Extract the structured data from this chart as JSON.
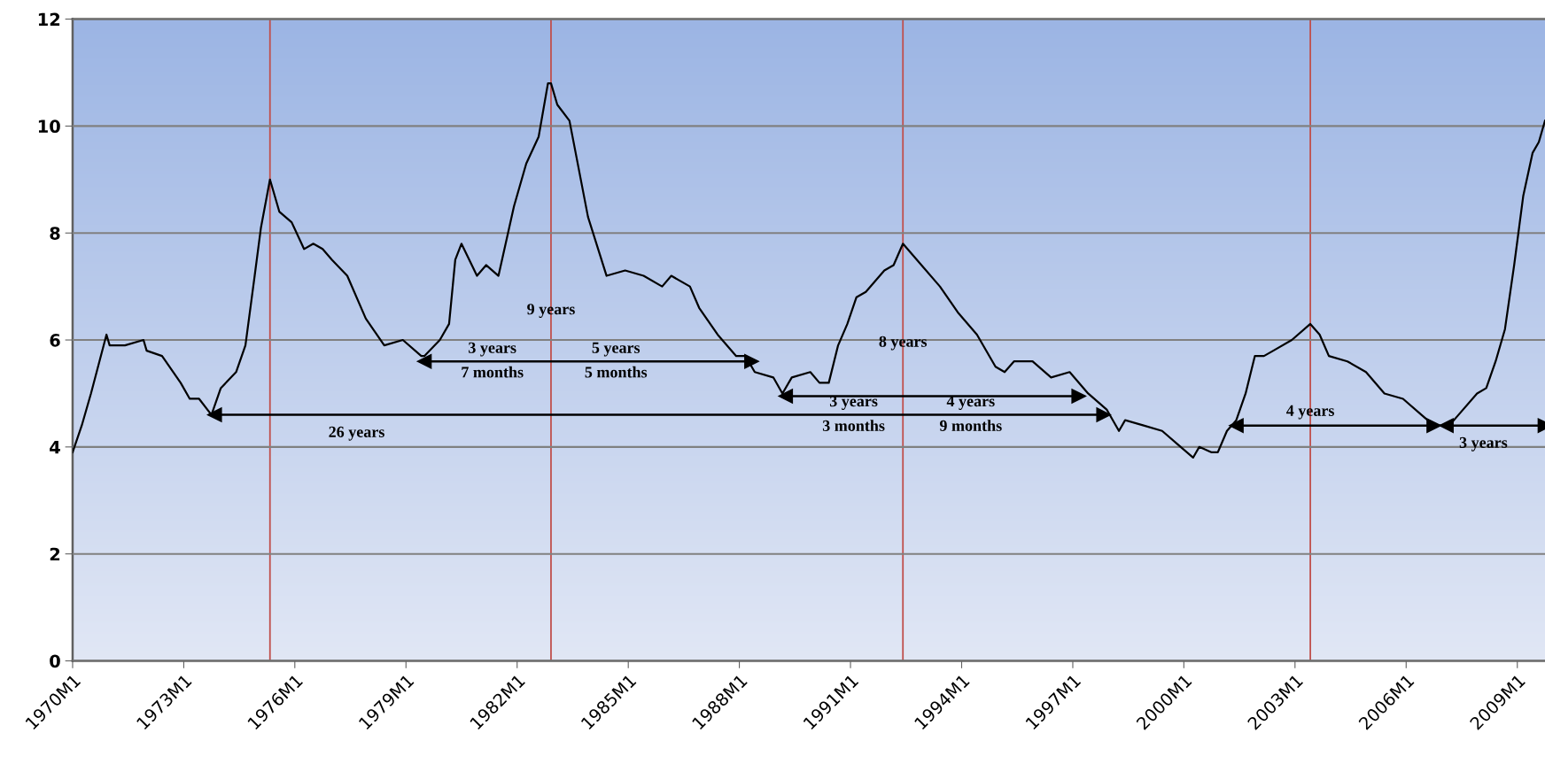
{
  "chart_data": {
    "type": "line",
    "x": [
      "1970-01",
      "1970-04",
      "1970-07",
      "1970-12",
      "1971-01",
      "1971-06",
      "1971-12",
      "1972-01",
      "1972-06",
      "1972-12",
      "1973-03",
      "1973-06",
      "1973-10",
      "1974-01",
      "1974-06",
      "1974-09",
      "1974-12",
      "1975-02",
      "1975-05",
      "1975-08",
      "1975-12",
      "1976-04",
      "1976-07",
      "1976-10",
      "1977-01",
      "1977-06",
      "1977-12",
      "1978-06",
      "1978-12",
      "1979-06",
      "1979-07",
      "1979-12",
      "1980-03",
      "1980-05",
      "1980-07",
      "1980-12",
      "1981-03",
      "1981-07",
      "1981-12",
      "1982-04",
      "1982-08",
      "1982-11",
      "1982-12",
      "1983-02",
      "1983-06",
      "1983-08",
      "1983-12",
      "1984-06",
      "1984-12",
      "1985-06",
      "1985-12",
      "1986-03",
      "1986-09",
      "1986-12",
      "1987-06",
      "1987-12",
      "1988-03",
      "1988-06",
      "1988-12",
      "1989-03",
      "1989-06",
      "1989-12",
      "1990-03",
      "1990-06",
      "1990-09",
      "1990-12",
      "1991-03",
      "1991-06",
      "1991-12",
      "1992-03",
      "1992-06",
      "1992-12",
      "1993-06",
      "1993-12",
      "1994-06",
      "1994-12",
      "1995-03",
      "1995-06",
      "1995-12",
      "1996-06",
      "1996-12",
      "1997-06",
      "1997-12",
      "1998-04",
      "1998-06",
      "1998-12",
      "1999-06",
      "1999-12",
      "2000-04",
      "2000-06",
      "2000-10",
      "2000-12",
      "2001-03",
      "2001-06",
      "2001-09",
      "2001-12",
      "2002-03",
      "2002-06",
      "2002-12",
      "2003-06",
      "2003-09",
      "2003-12",
      "2004-06",
      "2004-12",
      "2005-06",
      "2005-12",
      "2006-06",
      "2006-10",
      "2007-03",
      "2007-06",
      "2007-12",
      "2008-03",
      "2008-06",
      "2008-09",
      "2008-12",
      "2009-03",
      "2009-06",
      "2009-08",
      "2009-10"
    ],
    "series": [
      {
        "color": "#000000",
        "values": [
          3.9,
          4.4,
          5.0,
          6.1,
          5.9,
          5.9,
          6.0,
          5.8,
          5.7,
          5.2,
          4.9,
          4.9,
          4.6,
          5.1,
          5.4,
          5.9,
          7.2,
          8.1,
          9.0,
          8.4,
          8.2,
          7.7,
          7.8,
          7.7,
          7.5,
          7.2,
          6.4,
          5.9,
          6.0,
          5.7,
          5.7,
          6.0,
          6.3,
          7.5,
          7.8,
          7.2,
          7.4,
          7.2,
          8.5,
          9.3,
          9.8,
          10.8,
          10.8,
          10.4,
          10.1,
          9.5,
          8.3,
          7.2,
          7.3,
          7.2,
          7.0,
          7.2,
          7.0,
          6.6,
          6.1,
          5.7,
          5.7,
          5.4,
          5.3,
          5.0,
          5.3,
          5.4,
          5.2,
          5.2,
          5.9,
          6.3,
          6.8,
          6.9,
          7.3,
          7.4,
          7.8,
          7.4,
          7.0,
          6.5,
          6.1,
          5.5,
          5.4,
          5.6,
          5.6,
          5.3,
          5.4,
          5.0,
          4.7,
          4.3,
          4.5,
          4.4,
          4.3,
          4.0,
          3.8,
          4.0,
          3.9,
          3.9,
          4.3,
          4.5,
          5.0,
          5.7,
          5.7,
          5.8,
          6.0,
          6.3,
          6.1,
          5.7,
          5.6,
          5.4,
          5.0,
          4.9,
          4.6,
          4.4,
          4.4,
          4.6,
          5.0,
          5.1,
          5.6,
          6.2,
          7.4,
          8.7,
          9.5,
          9.7,
          10.1
        ]
      },
      {
        "color": "#000000",
        "marker": "triangle",
        "x": [
          "1973-11",
          "1997-11"
        ],
        "values": [
          4.6,
          4.6
        ]
      },
      {
        "color": "#000000",
        "marker": "triangle",
        "x": [
          "1979-07",
          "1988-05"
        ],
        "values": [
          5.6,
          5.6
        ]
      },
      {
        "color": "#000000",
        "marker": "triangle",
        "x": [
          "1989-04",
          "1997-03"
        ],
        "values": [
          4.95,
          4.95
        ]
      },
      {
        "color": "#000000",
        "marker": "triangle",
        "x": [
          "2001-06",
          "2006-10"
        ],
        "values": [
          4.4,
          4.4
        ]
      },
      {
        "color": "#000000",
        "marker": "triangle",
        "x": [
          "2007-02",
          "2009-10"
        ],
        "values": [
          4.4,
          4.4
        ]
      }
    ],
    "annotations": [
      {
        "text": "9 years",
        "x": "1982-12",
        "y": 6.55
      },
      {
        "text": "3 years\n7 months",
        "x": "1981-05",
        "y": 5.6
      },
      {
        "text": "5 years\n5 months",
        "x": "1984-09",
        "y": 5.6
      },
      {
        "text": "26 years",
        "x": "1977-09",
        "y": 4.6
      },
      {
        "text": "8 years",
        "x": "1992-06",
        "y": 5.6
      },
      {
        "text": "3 years\n3 months",
        "x": "1991-02",
        "y": 4.6
      },
      {
        "text": "4 years\n9 months",
        "x": "1994-04",
        "y": 4.6
      },
      {
        "text": "4 years",
        "x": "2003-06",
        "y": 4.4
      },
      {
        "text": "3 years",
        "x": "2008-02",
        "y": 4.4
      }
    ],
    "ref_lines": [
      {
        "axis": "x",
        "value": "1975-05",
        "color": "#c0504d"
      },
      {
        "axis": "x",
        "value": "1982-12",
        "color": "#c0504d"
      },
      {
        "axis": "x",
        "value": "1992-06",
        "color": "#c0504d"
      },
      {
        "axis": "x",
        "value": "2003-06",
        "color": "#c0504d"
      }
    ],
    "xlim": [
      "1970-01",
      "2009-10"
    ],
    "xticks": [
      {
        "value": "1970-01",
        "label": "1970M1"
      },
      {
        "value": "1973-01",
        "label": "1973M1"
      },
      {
        "value": "1976-01",
        "label": "1976M1"
      },
      {
        "value": "1979-01",
        "label": "1979M1"
      },
      {
        "value": "1982-01",
        "label": "1982M1"
      },
      {
        "value": "1985-01",
        "label": "1985M1"
      },
      {
        "value": "1988-01",
        "label": "1988M1"
      },
      {
        "value": "1991-01",
        "label": "1991M1"
      },
      {
        "value": "1994-01",
        "label": "1994M1"
      },
      {
        "value": "1997-01",
        "label": "1997M1"
      },
      {
        "value": "2000-01",
        "label": "2000M1"
      },
      {
        "value": "2003-01",
        "label": "2003M1"
      },
      {
        "value": "2006-01",
        "label": "2006M1"
      },
      {
        "value": "2009-01",
        "label": "2009M1"
      }
    ],
    "ylim": [
      0,
      12
    ],
    "yticks": [
      0,
      2,
      4,
      6,
      8,
      10,
      12
    ],
    "grid": "y",
    "legend": false,
    "line_style": "solid"
  }
}
